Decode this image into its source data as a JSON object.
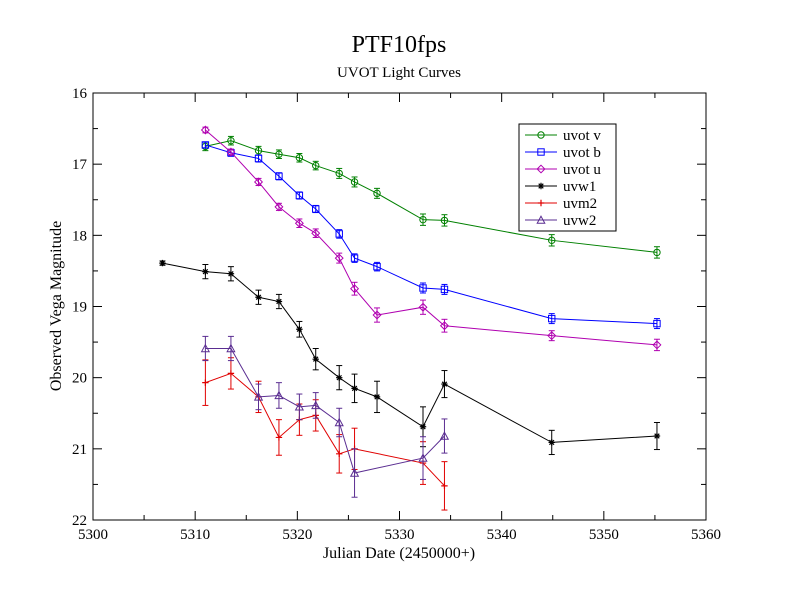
{
  "chart_data": {
    "type": "line",
    "title": "PTF10fps",
    "subtitle": "UVOT Light Curves",
    "xlabel": "Julian Date (2450000+)",
    "ylabel": "Observed Vega Magnitude",
    "xlim": [
      5300,
      5360
    ],
    "ylim": [
      16,
      22
    ],
    "y_inverted": true,
    "x_ticks": [
      5300,
      5310,
      5320,
      5330,
      5340,
      5350,
      5360
    ],
    "y_ticks": [
      16,
      17,
      18,
      19,
      20,
      21,
      22
    ],
    "grid": false,
    "legend_position": "top-right",
    "series": [
      {
        "name": "uvot v",
        "color": "#008000",
        "marker": "circle",
        "x": [
          5311.0,
          5313.5,
          5316.2,
          5318.2,
          5320.2,
          5321.8,
          5324.1,
          5325.6,
          5327.8,
          5332.3,
          5334.4,
          5344.9,
          5355.2
        ],
        "y": [
          16.75,
          16.67,
          16.81,
          16.86,
          16.91,
          17.02,
          17.13,
          17.25,
          17.41,
          17.78,
          17.79,
          18.07,
          18.24
        ],
        "err": [
          0.06,
          0.06,
          0.06,
          0.06,
          0.06,
          0.06,
          0.07,
          0.07,
          0.07,
          0.08,
          0.08,
          0.08,
          0.08
        ]
      },
      {
        "name": "uvot b",
        "color": "#0000ff",
        "marker": "square",
        "x": [
          5311.0,
          5313.5,
          5316.2,
          5318.2,
          5320.2,
          5321.8,
          5324.1,
          5325.6,
          5327.8,
          5332.3,
          5334.4,
          5344.9,
          5355.2
        ],
        "y": [
          16.73,
          16.84,
          16.92,
          17.17,
          17.44,
          17.63,
          17.98,
          18.32,
          18.44,
          18.74,
          18.76,
          19.17,
          19.24
        ],
        "err": [
          0.04,
          0.05,
          0.05,
          0.05,
          0.05,
          0.05,
          0.06,
          0.06,
          0.06,
          0.07,
          0.07,
          0.07,
          0.07
        ]
      },
      {
        "name": "uvot u",
        "color": "#b000b0",
        "marker": "diamond",
        "x": [
          5311.0,
          5313.5,
          5316.2,
          5318.2,
          5320.2,
          5321.8,
          5324.1,
          5325.6,
          5327.8,
          5332.3,
          5334.4,
          5344.9,
          5355.2
        ],
        "y": [
          16.52,
          16.83,
          17.25,
          17.6,
          17.83,
          17.97,
          18.32,
          18.75,
          19.12,
          19.01,
          19.27,
          19.41,
          19.54
        ],
        "err": [
          0.04,
          0.04,
          0.05,
          0.05,
          0.06,
          0.06,
          0.07,
          0.09,
          0.1,
          0.1,
          0.09,
          0.07,
          0.08
        ]
      },
      {
        "name": "uvw1",
        "color": "#000000",
        "marker": "star",
        "x": [
          5306.8,
          5311.0,
          5313.5,
          5316.2,
          5318.2,
          5320.2,
          5321.8,
          5324.1,
          5325.6,
          5327.8,
          5332.3,
          5334.4,
          5344.9,
          5355.2
        ],
        "y": [
          18.39,
          18.51,
          18.54,
          18.87,
          18.93,
          19.32,
          19.74,
          20.0,
          20.15,
          20.27,
          20.69,
          20.09,
          20.91,
          20.82
        ],
        "err": [
          0.03,
          0.1,
          0.1,
          0.1,
          0.1,
          0.11,
          0.15,
          0.17,
          0.2,
          0.22,
          0.28,
          0.19,
          0.17,
          0.19
        ]
      },
      {
        "name": "uvm2",
        "color": "#e00000",
        "marker": "plus",
        "x": [
          5311.0,
          5313.5,
          5316.2,
          5318.2,
          5320.2,
          5321.8,
          5324.1,
          5325.6,
          5332.3,
          5334.4
        ],
        "y": [
          20.07,
          19.94,
          20.27,
          20.84,
          20.59,
          20.53,
          21.07,
          21.0,
          21.2,
          21.52
        ],
        "err": [
          0.32,
          0.22,
          0.22,
          0.25,
          0.22,
          0.22,
          0.27,
          0.29,
          0.3,
          0.34
        ]
      },
      {
        "name": "uvw2",
        "color": "#5a2d91",
        "marker": "triangle",
        "x": [
          5311.0,
          5313.5,
          5316.2,
          5318.2,
          5320.2,
          5321.8,
          5324.1,
          5325.6,
          5332.3,
          5334.4
        ],
        "y": [
          19.59,
          19.59,
          20.27,
          20.25,
          20.41,
          20.39,
          20.63,
          21.34,
          21.13,
          20.82
        ],
        "err": [
          0.17,
          0.17,
          0.18,
          0.18,
          0.18,
          0.18,
          0.2,
          0.34,
          0.3,
          0.24
        ]
      }
    ]
  }
}
